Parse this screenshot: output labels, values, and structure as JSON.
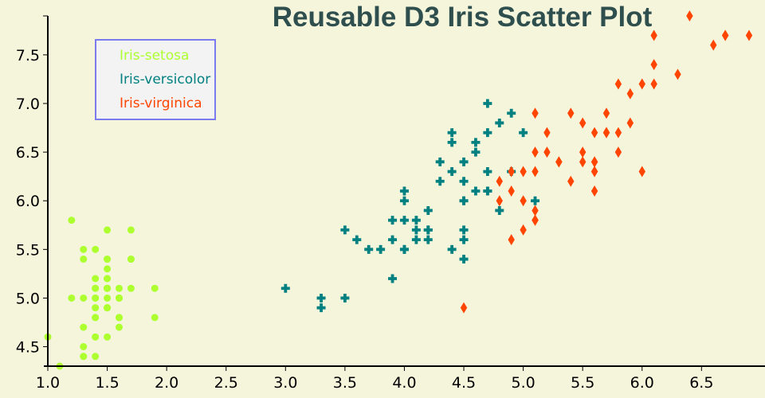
{
  "chart_data": {
    "type": "scatter",
    "title": "Reusable D3 Iris Scatter Plot",
    "xlabel": "",
    "ylabel": "",
    "xlim": [
      1.0,
      6.9
    ],
    "ylim": [
      4.3,
      7.9
    ],
    "xticks": [
      "1.0",
      "1.5",
      "2.0",
      "2.5",
      "3.0",
      "3.5",
      "4.0",
      "4.5",
      "5.0",
      "5.5",
      "6.0",
      "6.5"
    ],
    "yticks": [
      "4.5",
      "5.0",
      "5.5",
      "6.0",
      "6.5",
      "7.0",
      "7.5"
    ],
    "grid": false,
    "legend_position": "top-left",
    "colors": {
      "title": "#2F4F4F",
      "background": "#F5F5DC",
      "legend_border": "#7B7BEE",
      "legend_fill": "#F3F3F3"
    },
    "series": [
      {
        "name": "Iris-setosa",
        "color": "#ADFF2F",
        "shape": "circle",
        "points": [
          [
            1.4,
            5.1
          ],
          [
            1.4,
            4.9
          ],
          [
            1.3,
            4.7
          ],
          [
            1.5,
            4.6
          ],
          [
            1.4,
            5.0
          ],
          [
            1.7,
            5.4
          ],
          [
            1.4,
            4.6
          ],
          [
            1.5,
            5.0
          ],
          [
            1.4,
            4.4
          ],
          [
            1.5,
            4.9
          ],
          [
            1.5,
            5.4
          ],
          [
            1.6,
            4.8
          ],
          [
            1.4,
            4.8
          ],
          [
            1.1,
            4.3
          ],
          [
            1.2,
            5.8
          ],
          [
            1.5,
            5.7
          ],
          [
            1.3,
            5.4
          ],
          [
            1.4,
            5.1
          ],
          [
            1.7,
            5.7
          ],
          [
            1.5,
            5.1
          ],
          [
            1.7,
            5.4
          ],
          [
            1.5,
            5.1
          ],
          [
            1.0,
            4.6
          ],
          [
            1.7,
            5.1
          ],
          [
            1.9,
            4.8
          ],
          [
            1.6,
            5.0
          ],
          [
            1.6,
            5.0
          ],
          [
            1.5,
            5.2
          ],
          [
            1.4,
            5.2
          ],
          [
            1.6,
            4.7
          ],
          [
            1.6,
            4.8
          ],
          [
            1.5,
            5.4
          ],
          [
            1.5,
            5.2
          ],
          [
            1.4,
            5.5
          ],
          [
            1.5,
            4.9
          ],
          [
            1.2,
            5.0
          ],
          [
            1.3,
            5.5
          ],
          [
            1.5,
            4.9
          ],
          [
            1.3,
            4.4
          ],
          [
            1.5,
            5.1
          ],
          [
            1.3,
            5.0
          ],
          [
            1.3,
            4.5
          ],
          [
            1.3,
            4.4
          ],
          [
            1.6,
            5.0
          ],
          [
            1.9,
            5.1
          ],
          [
            1.4,
            4.8
          ],
          [
            1.6,
            5.1
          ],
          [
            1.4,
            4.6
          ],
          [
            1.5,
            5.3
          ],
          [
            1.4,
            5.0
          ]
        ]
      },
      {
        "name": "Iris-versicolor",
        "color": "#008080",
        "shape": "cross",
        "points": [
          [
            4.7,
            7.0
          ],
          [
            4.5,
            6.4
          ],
          [
            4.9,
            6.9
          ],
          [
            4.0,
            5.5
          ],
          [
            4.6,
            6.5
          ],
          [
            4.5,
            5.7
          ],
          [
            4.7,
            6.3
          ],
          [
            3.3,
            4.9
          ],
          [
            4.6,
            6.6
          ],
          [
            3.9,
            5.2
          ],
          [
            3.5,
            5.0
          ],
          [
            4.2,
            5.9
          ],
          [
            4.0,
            6.0
          ],
          [
            4.7,
            6.1
          ],
          [
            3.6,
            5.6
          ],
          [
            4.4,
            6.7
          ],
          [
            4.5,
            5.6
          ],
          [
            4.1,
            5.8
          ],
          [
            4.5,
            6.2
          ],
          [
            3.9,
            5.6
          ],
          [
            4.8,
            5.9
          ],
          [
            4.0,
            6.1
          ],
          [
            4.9,
            6.3
          ],
          [
            4.7,
            6.1
          ],
          [
            4.3,
            6.4
          ],
          [
            4.4,
            6.6
          ],
          [
            4.8,
            6.8
          ],
          [
            5.0,
            6.7
          ],
          [
            4.5,
            6.0
          ],
          [
            3.5,
            5.7
          ],
          [
            3.8,
            5.5
          ],
          [
            3.7,
            5.5
          ],
          [
            3.9,
            5.8
          ],
          [
            5.1,
            6.0
          ],
          [
            4.5,
            5.4
          ],
          [
            4.5,
            6.0
          ],
          [
            4.7,
            6.7
          ],
          [
            4.4,
            6.3
          ],
          [
            4.1,
            5.6
          ],
          [
            4.0,
            5.5
          ],
          [
            4.4,
            5.5
          ],
          [
            4.6,
            6.1
          ],
          [
            4.0,
            5.8
          ],
          [
            3.3,
            5.0
          ],
          [
            4.2,
            5.6
          ],
          [
            4.2,
            5.7
          ],
          [
            4.2,
            5.7
          ],
          [
            4.3,
            6.2
          ],
          [
            3.0,
            5.1
          ],
          [
            4.1,
            5.7
          ]
        ]
      },
      {
        "name": "Iris-virginica",
        "color": "#FF4500",
        "shape": "diamond",
        "points": [
          [
            6.0,
            6.3
          ],
          [
            5.1,
            5.8
          ],
          [
            5.9,
            7.1
          ],
          [
            5.6,
            6.3
          ],
          [
            5.8,
            6.5
          ],
          [
            6.6,
            7.6
          ],
          [
            4.5,
            4.9
          ],
          [
            6.3,
            7.3
          ],
          [
            5.8,
            6.7
          ],
          [
            6.1,
            7.2
          ],
          [
            5.1,
            6.5
          ],
          [
            5.3,
            6.4
          ],
          [
            5.5,
            6.8
          ],
          [
            5.0,
            5.7
          ],
          [
            5.1,
            5.8
          ],
          [
            5.3,
            6.4
          ],
          [
            5.5,
            6.5
          ],
          [
            6.7,
            7.7
          ],
          [
            6.9,
            7.7
          ],
          [
            5.0,
            6.0
          ],
          [
            5.7,
            6.9
          ],
          [
            4.9,
            5.6
          ],
          [
            6.7,
            7.7
          ],
          [
            4.9,
            6.3
          ],
          [
            5.7,
            6.7
          ],
          [
            6.0,
            7.2
          ],
          [
            4.8,
            6.2
          ],
          [
            4.9,
            6.1
          ],
          [
            5.6,
            6.4
          ],
          [
            5.8,
            7.2
          ],
          [
            6.1,
            7.4
          ],
          [
            6.4,
            7.9
          ],
          [
            5.6,
            6.4
          ],
          [
            5.1,
            6.3
          ],
          [
            5.6,
            6.1
          ],
          [
            6.1,
            7.7
          ],
          [
            5.6,
            6.3
          ],
          [
            5.5,
            6.4
          ],
          [
            4.8,
            6.0
          ],
          [
            5.4,
            6.9
          ],
          [
            5.6,
            6.7
          ],
          [
            5.1,
            6.9
          ],
          [
            5.1,
            5.8
          ],
          [
            5.9,
            6.8
          ],
          [
            5.7,
            6.7
          ],
          [
            5.2,
            6.7
          ],
          [
            5.0,
            6.3
          ],
          [
            5.2,
            6.5
          ],
          [
            5.4,
            6.2
          ],
          [
            5.1,
            5.9
          ]
        ]
      }
    ]
  }
}
